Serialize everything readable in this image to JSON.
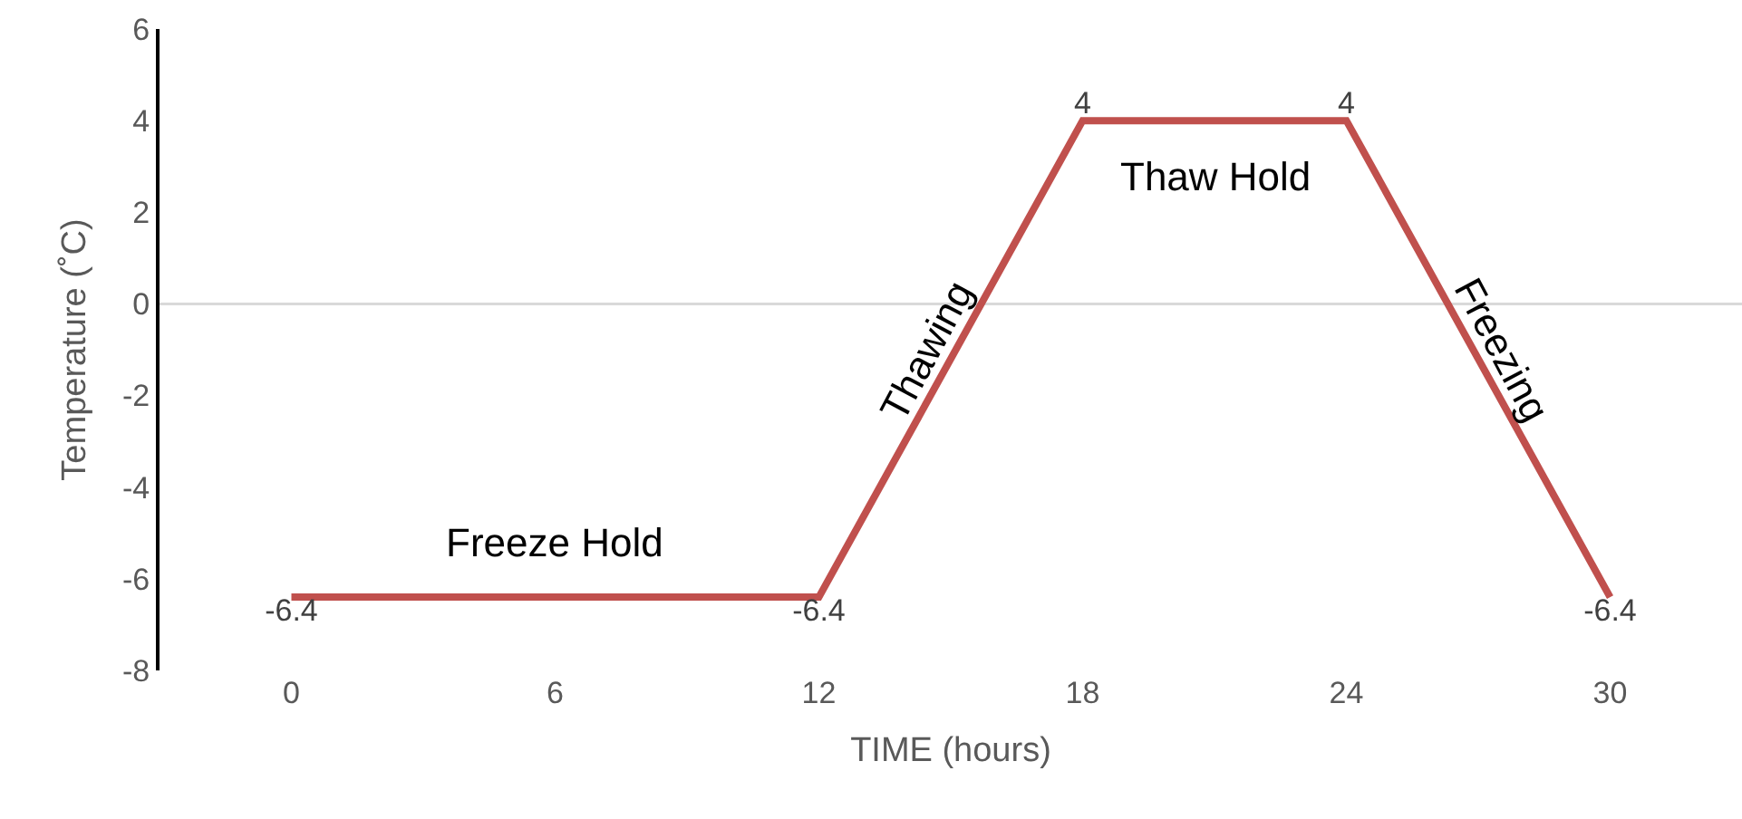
{
  "chart_data": {
    "type": "line",
    "xlabel": "TIME (hours)",
    "ylabel": "Temperature (˚C)",
    "x": [
      0,
      12,
      18,
      24,
      30
    ],
    "series": [
      {
        "color": "#c0504d",
        "values": [
          -6.4,
          -6.4,
          4,
          4,
          -6.4
        ]
      }
    ],
    "xlim": [
      -3,
      33
    ],
    "xticks": [
      0,
      6,
      12,
      18,
      24,
      30
    ],
    "ylim": [
      -8,
      6
    ],
    "yticks": [
      -8,
      -6,
      -4,
      -2,
      0,
      2,
      4,
      6
    ],
    "grid": false,
    "marker": "none",
    "line_style": "solid",
    "data_labels": true,
    "ref_lines": [
      {
        "axis": "y",
        "value": 0,
        "color": "#d9d9d9"
      }
    ],
    "annotations": [
      {
        "text": "Freeze Hold",
        "x": 6,
        "y": -6.4
      },
      {
        "text": "Thawing",
        "x": 15.1,
        "y": -1
      },
      {
        "text": "Thaw Hold",
        "x": 21,
        "y": 4
      },
      {
        "text": "Freezing",
        "x": 26.9,
        "y": -1
      }
    ]
  }
}
